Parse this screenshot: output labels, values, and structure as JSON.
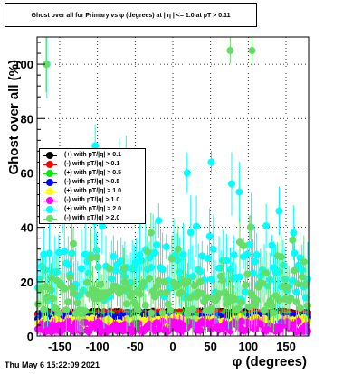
{
  "title": "Ghost over all for Primary vs φ (degrees) at | η | <= 1.0 at pT > 0.11",
  "footer": "Thu May  6 15:22:09 2021",
  "chart_data": {
    "type": "scatter",
    "xlabel": "φ (degrees)",
    "ylabel": "Ghost over all (%)",
    "xlim": [
      -180,
      180
    ],
    "ylim": [
      0,
      110
    ],
    "x_ticks": [
      "-150",
      "-100",
      "-50",
      "0",
      "50",
      "100",
      "150"
    ],
    "x_tick_values": [
      -150,
      -100,
      -50,
      0,
      50,
      100,
      150
    ],
    "y_ticks": [
      "0",
      "20",
      "40",
      "60",
      "80",
      "100"
    ],
    "y_tick_values": [
      0,
      20,
      40,
      60,
      80,
      100
    ],
    "grid": true,
    "legend_position": "left",
    "series": [
      {
        "name": "(+) with pT/|q| > 0.1",
        "color": "#000000",
        "base": 8.5,
        "spread": 0.6,
        "err": 1.2,
        "seed": 11,
        "points": []
      },
      {
        "name": "(-) with pT/|q| > 0.1",
        "color": "#ff0000",
        "base": 8.2,
        "spread": 0.7,
        "err": 1.2,
        "seed": 23,
        "points": []
      },
      {
        "name": "(+) with pT/|q| > 0.5",
        "color": "#00ee00",
        "base": 7.0,
        "spread": 1.0,
        "err": 1.5,
        "seed": 37,
        "points": []
      },
      {
        "name": "(-) with pT/|q| > 0.5",
        "color": "#0000ff",
        "base": 6.8,
        "spread": 1.0,
        "err": 1.5,
        "seed": 41,
        "points": []
      },
      {
        "name": "(+) with pT/|q| > 1.0",
        "color": "#ffff00",
        "base": 5.5,
        "spread": 1.5,
        "err": 2.0,
        "seed": 53,
        "points": []
      },
      {
        "name": "(-) with pT/|q| > 1.0",
        "color": "#ff00ff",
        "base": 3.5,
        "spread": 2.0,
        "err": 2.5,
        "seed": 67,
        "points": []
      },
      {
        "name": "(+) with pT/|q| > 2.0",
        "color": "#00ffff",
        "base": 22,
        "spread": 9,
        "err": 9,
        "seed": 71,
        "points": [
          [
            -167,
            100
          ],
          [
            -103,
            70
          ],
          [
            -71,
            61
          ],
          [
            -62,
            66
          ],
          [
            -57,
            58
          ],
          [
            -44,
            57
          ],
          [
            19,
            60
          ],
          [
            51,
            64
          ],
          [
            78,
            56
          ],
          [
            88,
            53
          ],
          [
            141,
            46
          ],
          [
            104,
            40
          ],
          [
            160,
            38
          ]
        ]
      },
      {
        "name": "(-) with pT/|q| > 2.0",
        "color": "#66dd66",
        "base": 15,
        "spread": 7,
        "err": 7,
        "seed": 83,
        "points": [
          [
            -168,
            100
          ],
          [
            76,
            105
          ],
          [
            105,
            105
          ],
          [
            -132,
            34
          ],
          [
            -101,
            29
          ],
          [
            -29,
            38
          ],
          [
            7,
            32
          ],
          [
            103,
            40
          ],
          [
            20,
            20
          ],
          [
            -65,
            25
          ]
        ]
      }
    ]
  }
}
